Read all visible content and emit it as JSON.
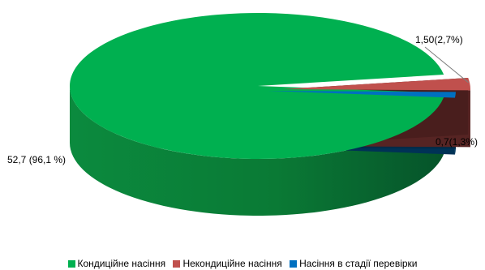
{
  "chart_data": {
    "type": "pie",
    "three_d": true,
    "slices": [
      {
        "name": "Кондиційне насіння",
        "value": 52.7,
        "label": "52,7 (96,1 %)",
        "color": "#00B050"
      },
      {
        "name": "Некондиційне насіння",
        "value": 1.5,
        "label": "1,50(2,7%)",
        "color": "#C0504D"
      },
      {
        "name": "Насіння в стадії перевірки",
        "value": 0.7,
        "label": "0,7(1,3%)",
        "color": "#0070C0"
      }
    ],
    "legend_position": "bottom"
  }
}
